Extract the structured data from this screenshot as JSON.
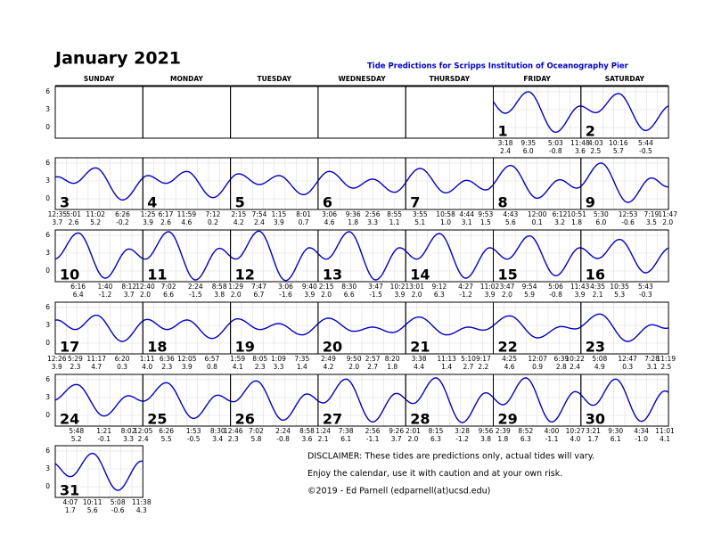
{
  "header": {
    "title": "January 2021",
    "subtitle": "Tide Predictions for Scripps Institution of Oceanography Pier"
  },
  "weekdays": [
    "SUNDAY",
    "MONDAY",
    "TUESDAY",
    "WEDNESDAY",
    "THURSDAY",
    "FRIDAY",
    "SATURDAY"
  ],
  "yticks": [
    6,
    3,
    0
  ],
  "days": [
    {
      "day": 1,
      "tides": [
        [
          "3:18",
          "2.4"
        ],
        [
          "9:35",
          "6.0"
        ],
        [
          "5:03",
          "-0.8"
        ],
        [
          "11:48",
          "3.6"
        ]
      ]
    },
    {
      "day": 2,
      "tides": [
        [
          "4:03",
          "2.5"
        ],
        [
          "10:16",
          "5.7"
        ],
        [
          "5:44",
          "-0.5"
        ]
      ]
    },
    {
      "day": 3,
      "tides": [
        [
          "12:35",
          "3.7"
        ],
        [
          "5:01",
          "2.6"
        ],
        [
          "11:02",
          "5.2"
        ],
        [
          "6:26",
          "-0.2"
        ]
      ]
    },
    {
      "day": 4,
      "tides": [
        [
          "1:25",
          "3.9"
        ],
        [
          "6:17",
          "2.6"
        ],
        [
          "11:59",
          "4.6"
        ],
        [
          "7:12",
          "0.2"
        ]
      ]
    },
    {
      "day": 5,
      "tides": [
        [
          "2:15",
          "4.2"
        ],
        [
          "7:54",
          "2.4"
        ],
        [
          "1:15",
          "3.9"
        ],
        [
          "8:01",
          "0.7"
        ]
      ]
    },
    {
      "day": 6,
      "tides": [
        [
          "3:06",
          "4.6"
        ],
        [
          "9:36",
          "1.8"
        ],
        [
          "2:56",
          "3.3"
        ],
        [
          "8:55",
          "1.1"
        ]
      ]
    },
    {
      "day": 7,
      "tides": [
        [
          "3:55",
          "5.1"
        ],
        [
          "10:58",
          "1.0"
        ],
        [
          "4:44",
          "3.1"
        ],
        [
          "9:53",
          "1.5"
        ]
      ]
    },
    {
      "day": 8,
      "tides": [
        [
          "4:43",
          "5.6"
        ],
        [
          "12:00",
          "0.1"
        ],
        [
          "6:12",
          "3.2"
        ],
        [
          "10:51",
          "1.8"
        ]
      ]
    },
    {
      "day": 9,
      "tides": [
        [
          "5:30",
          "6.0"
        ],
        [
          "12:53",
          "-0.6"
        ],
        [
          "7:19",
          "3.5"
        ],
        [
          "11:47",
          "2.0"
        ]
      ]
    },
    {
      "day": 10,
      "tides": [
        [
          "6:16",
          "6.4"
        ],
        [
          "1:40",
          "-1.2"
        ],
        [
          "8:12",
          "3.7"
        ]
      ]
    },
    {
      "day": 11,
      "tides": [
        [
          "12:40",
          "2.0"
        ],
        [
          "7:02",
          "6.6"
        ],
        [
          "2:24",
          "-1.5"
        ],
        [
          "8:58",
          "3.8"
        ]
      ]
    },
    {
      "day": 12,
      "tides": [
        [
          "1:29",
          "2.0"
        ],
        [
          "7:47",
          "6.7"
        ],
        [
          "3:06",
          "-1.6"
        ],
        [
          "9:40",
          "3.9"
        ]
      ]
    },
    {
      "day": 13,
      "tides": [
        [
          "2:15",
          "2.0"
        ],
        [
          "8:30",
          "6.6"
        ],
        [
          "3:47",
          "-1.5"
        ],
        [
          "10:21",
          "3.9"
        ]
      ]
    },
    {
      "day": 14,
      "tides": [
        [
          "3:01",
          "2.0"
        ],
        [
          "9:12",
          "6.3"
        ],
        [
          "4:27",
          "-1.2"
        ],
        [
          "11:02",
          "3.9"
        ]
      ]
    },
    {
      "day": 15,
      "tides": [
        [
          "3:47",
          "2.0"
        ],
        [
          "9:54",
          "5.9"
        ],
        [
          "5:06",
          "-0.8"
        ],
        [
          "11:43",
          "3.9"
        ]
      ]
    },
    {
      "day": 16,
      "tides": [
        [
          "4:35",
          "2.1"
        ],
        [
          "10:35",
          "5.3"
        ],
        [
          "5:43",
          "-0.3"
        ]
      ]
    },
    {
      "day": 17,
      "tides": [
        [
          "12:26",
          "3.9"
        ],
        [
          "5:29",
          "2.3"
        ],
        [
          "11:17",
          "4.7"
        ],
        [
          "6:20",
          "0.3"
        ]
      ]
    },
    {
      "day": 18,
      "tides": [
        [
          "1:11",
          "4.0"
        ],
        [
          "6:36",
          "2.3"
        ],
        [
          "12:05",
          "3.9"
        ],
        [
          "6:57",
          "0.8"
        ]
      ]
    },
    {
      "day": 19,
      "tides": [
        [
          "1:59",
          "4.1"
        ],
        [
          "8:05",
          "2.3"
        ],
        [
          "1:09",
          "3.3"
        ],
        [
          "7:35",
          "1.4"
        ]
      ]
    },
    {
      "day": 20,
      "tides": [
        [
          "2:49",
          "4.2"
        ],
        [
          "9:50",
          "2.0"
        ],
        [
          "2:57",
          "2.7"
        ],
        [
          "8:20",
          "1.8"
        ]
      ]
    },
    {
      "day": 21,
      "tides": [
        [
          "3:38",
          "4.4"
        ],
        [
          "11:13",
          "1.4"
        ],
        [
          "5:10",
          "2.7"
        ],
        [
          "9:17",
          "2.2"
        ]
      ]
    },
    {
      "day": 22,
      "tides": [
        [
          "4:25",
          "4.6"
        ],
        [
          "12:07",
          "0.9"
        ],
        [
          "6:39",
          "2.8"
        ],
        [
          "10:22",
          "2.4"
        ]
      ]
    },
    {
      "day": 23,
      "tides": [
        [
          "5:08",
          "4.9"
        ],
        [
          "12:47",
          "0.3"
        ],
        [
          "7:28",
          "3.1"
        ],
        [
          "11:19",
          "2.5"
        ]
      ]
    },
    {
      "day": 24,
      "tides": [
        [
          "5:48",
          "5.2"
        ],
        [
          "1:21",
          "-0.1"
        ],
        [
          "8:02",
          "3.3"
        ]
      ]
    },
    {
      "day": 25,
      "tides": [
        [
          "12:05",
          "2.4"
        ],
        [
          "6:26",
          "5.5"
        ],
        [
          "1:53",
          "-0.5"
        ],
        [
          "8:30",
          "3.4"
        ]
      ]
    },
    {
      "day": 26,
      "tides": [
        [
          "12:46",
          "2.3"
        ],
        [
          "7:02",
          "5.8"
        ],
        [
          "2:24",
          "-0.8"
        ],
        [
          "8:58",
          "3.6"
        ]
      ]
    },
    {
      "day": 27,
      "tides": [
        [
          "1:24",
          "2.1"
        ],
        [
          "7:38",
          "6.1"
        ],
        [
          "2:56",
          "-1.1"
        ],
        [
          "9:26",
          "3.7"
        ]
      ]
    },
    {
      "day": 28,
      "tides": [
        [
          "2:01",
          "2.0"
        ],
        [
          "8:15",
          "6.3"
        ],
        [
          "3:28",
          "-1.2"
        ],
        [
          "9:56",
          "3.8"
        ]
      ]
    },
    {
      "day": 29,
      "tides": [
        [
          "2:39",
          "1.8"
        ],
        [
          "8:52",
          "6.3"
        ],
        [
          "4:00",
          "-1.1"
        ],
        [
          "10:27",
          "4.0"
        ]
      ]
    },
    {
      "day": 30,
      "tides": [
        [
          "3:21",
          "1.7"
        ],
        [
          "9:30",
          "6.1"
        ],
        [
          "4:34",
          "-1.0"
        ],
        [
          "11:01",
          "4.1"
        ]
      ]
    },
    {
      "day": 31,
      "tides": [
        [
          "4:07",
          "1.7"
        ],
        [
          "10:11",
          "5.6"
        ],
        [
          "5:08",
          "-0.6"
        ],
        [
          "11:38",
          "4.3"
        ]
      ]
    }
  ],
  "disclaimer": [
    "DISCLAIMER: These tides are predictions only, actual tides will vary.",
    "Enjoy the calendar, use it with caution and at your own risk.",
    "©2019 - Ed Parnell (edparnell(at)ucsd.edu)"
  ]
}
